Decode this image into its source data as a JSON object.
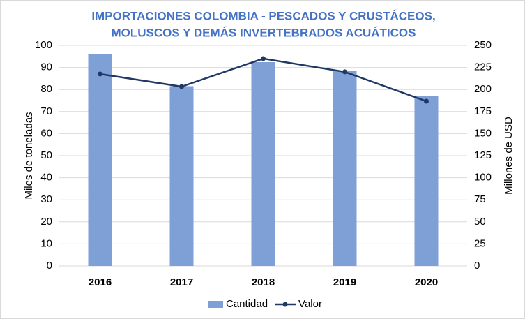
{
  "chart_data": {
    "type": "bar-line",
    "title": [
      "IMPORTACIONES COLOMBIA - PESCADOS Y CRUSTÁCEOS,",
      "MOLUSCOS Y DEMÁS INVERTEBRADOS ACUÁTICOS"
    ],
    "y_label": "Miles de toneladas",
    "y2_label": "Millones de USD",
    "categories": [
      "2016",
      "2017",
      "2018",
      "2019",
      "2020"
    ],
    "series": [
      {
        "name": "Cantidad",
        "type": "bar",
        "color": "#7f9fd7",
        "values": [
          96,
          81.5,
          92.4,
          88.6,
          77.2
        ]
      },
      {
        "name": "Valor",
        "type": "line",
        "axis": "y2",
        "color": "#203864",
        "values": [
          217.6,
          203.3,
          235,
          220,
          186.7
        ]
      }
    ],
    "ylim": [
      0,
      100
    ],
    "yticks": [
      0,
      10,
      20,
      30,
      40,
      50,
      60,
      70,
      80,
      90,
      100
    ],
    "y2lim": [
      0,
      250
    ],
    "y2ticks": [
      0,
      25,
      50,
      75,
      100,
      125,
      150,
      175,
      200,
      225,
      250
    ],
    "grid": true,
    "legend": "bottom"
  }
}
